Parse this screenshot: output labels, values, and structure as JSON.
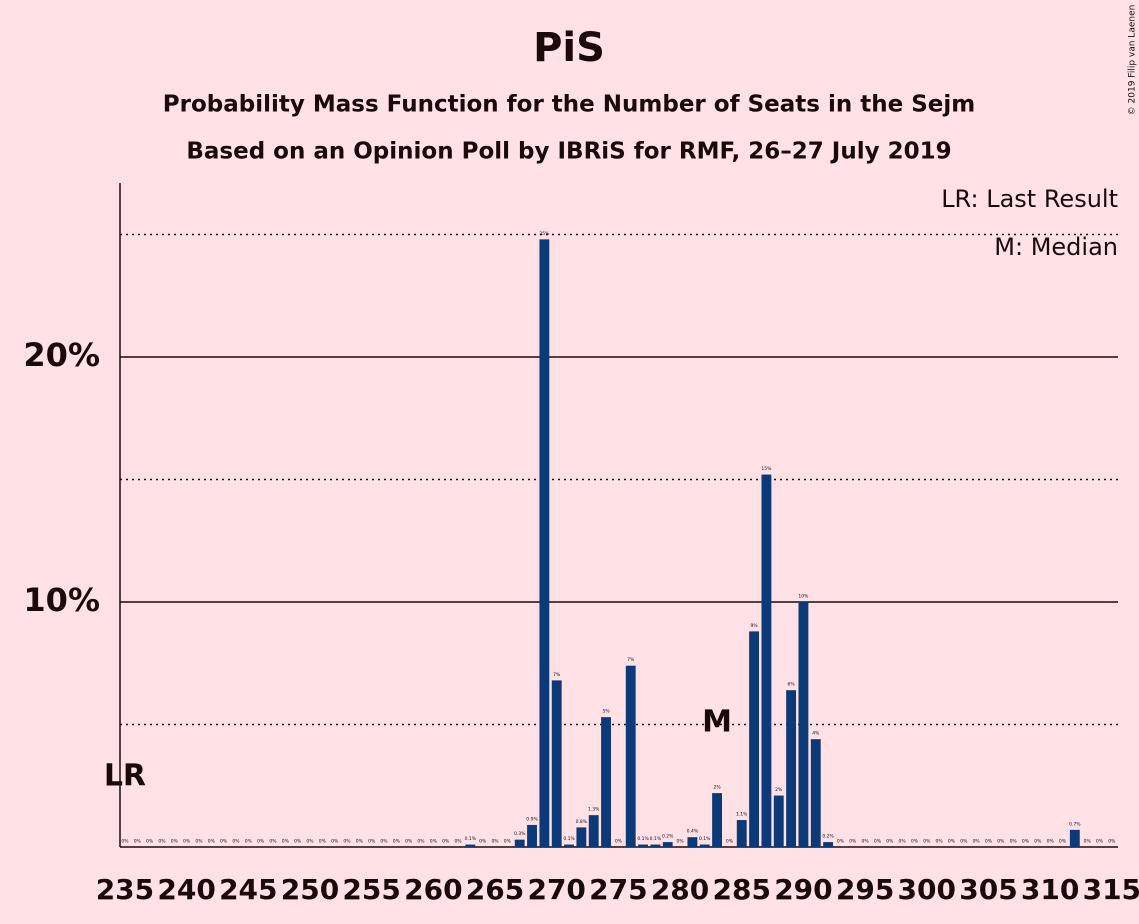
{
  "chart_data": {
    "type": "bar",
    "title": "PiS",
    "subtitle": "Probability Mass Function for the Number of Seats in the Sejm",
    "subtitle2": "Based on an Opinion Poll by IBRiS for RMF, 26–27 July 2019",
    "credit": "© 2019 Filip van Laenen",
    "legend": [
      "LR: Last Result",
      "M: Median"
    ],
    "annotations": [
      {
        "text": "LR",
        "x": 235
      },
      {
        "text": "M",
        "x": 283
      }
    ],
    "color": "#0c3978",
    "x": [
      235,
      236,
      237,
      238,
      239,
      240,
      241,
      242,
      243,
      244,
      245,
      246,
      247,
      248,
      249,
      250,
      251,
      252,
      253,
      254,
      255,
      256,
      257,
      258,
      259,
      260,
      261,
      262,
      263,
      264,
      265,
      266,
      267,
      268,
      269,
      270,
      271,
      272,
      273,
      274,
      275,
      276,
      277,
      278,
      279,
      280,
      281,
      282,
      283,
      284,
      285,
      286,
      287,
      288,
      289,
      290,
      291,
      292,
      293,
      294,
      295,
      296,
      297,
      298,
      299,
      300,
      301,
      302,
      303,
      304,
      305,
      306,
      307,
      308,
      309,
      310,
      311,
      312,
      313,
      314,
      315
    ],
    "values": [
      0,
      0,
      0,
      0,
      0,
      0,
      0,
      0,
      0,
      0,
      0,
      0,
      0,
      0,
      0,
      0,
      0,
      0,
      0,
      0,
      0,
      0,
      0,
      0,
      0,
      0,
      0,
      0,
      0.1,
      0,
      0,
      0,
      0.3,
      0.9,
      24.8,
      6.8,
      0.1,
      0.8,
      1.3,
      5.3,
      0,
      7.4,
      0.1,
      0.1,
      0.2,
      0,
      0.4,
      0.1,
      2.2,
      0,
      1.1,
      8.8,
      15.2,
      2.1,
      6.4,
      10,
      4.4,
      0.2,
      0,
      0,
      0,
      0,
      0,
      0,
      0,
      0,
      0,
      0,
      0,
      0,
      0,
      0,
      0,
      0,
      0,
      0,
      0,
      0.7,
      0,
      0,
      0
    ],
    "value_labels": [
      "0%",
      "0%",
      "0%",
      "0%",
      "0%",
      "0%",
      "0%",
      "0%",
      "0%",
      "0%",
      "0%",
      "0%",
      "0%",
      "0%",
      "0%",
      "0%",
      "0%",
      "0%",
      "0%",
      "0%",
      "0%",
      "0%",
      "0%",
      "0%",
      "0%",
      "0%",
      "0%",
      "0%",
      "0.1%",
      "0%",
      "0%",
      "0%",
      "0.3%",
      "0.9%",
      "25%",
      "7%",
      "0.1%",
      "0.8%",
      "1.3%",
      "5%",
      "0%",
      "7%",
      "0.1%",
      "0.1%",
      "0.2%",
      "0%",
      "0.4%",
      "0.1%",
      "2%",
      "0%",
      "1.1%",
      "9%",
      "15%",
      "2%",
      "6%",
      "10%",
      "4%",
      "0.2%",
      "0%",
      "0%",
      "0%",
      "0%",
      "0%",
      "0%",
      "0%",
      "0%",
      "0%",
      "0%",
      "0%",
      "0%",
      "0%",
      "0%",
      "0%",
      "0%",
      "0%",
      "0%",
      "0%",
      "0.7%",
      "0%",
      "0%",
      "0%"
    ],
    "xlim": [
      234.6,
      315.5
    ],
    "xticks": [
      235,
      240,
      245,
      250,
      255,
      260,
      265,
      270,
      275,
      280,
      285,
      290,
      295,
      300,
      305,
      310,
      315
    ],
    "ylim": [
      0,
      27.1
    ],
    "yticks": [
      {
        "value": 10,
        "label": "10%"
      },
      {
        "value": 20,
        "label": "20%"
      }
    ],
    "yminor": [
      5,
      15,
      25
    ],
    "grid": true
  }
}
